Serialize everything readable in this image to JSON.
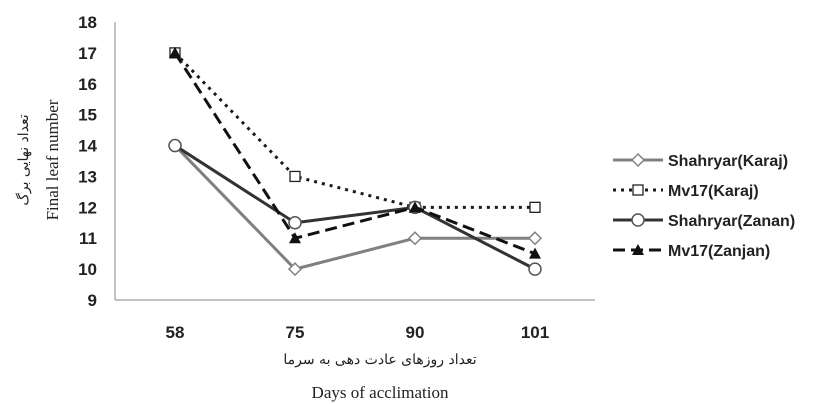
{
  "chart_data": {
    "type": "line",
    "categories": [
      "58",
      "75",
      "90",
      "101"
    ],
    "ylim": [
      9,
      18
    ],
    "yticks": [
      "9",
      "10",
      "11",
      "12",
      "13",
      "14",
      "15",
      "16",
      "17",
      "18"
    ],
    "ylabel_fa": "تعداد نهایی برگ",
    "ylabel_en": "Final leaf number",
    "xlabel_fa": "تعداد روزهای عادت دهی به سرما",
    "xlabel_en": "Days of acclimation",
    "legend_position": "right",
    "grid": false,
    "series": [
      {
        "name": "Shahryar(Karaj)",
        "values": [
          14,
          10,
          11,
          11
        ],
        "color": "#808080",
        "dash": "solid",
        "marker": "diamond-open"
      },
      {
        "name": "Mv17(Karaj)",
        "values": [
          17,
          13,
          12,
          12
        ],
        "color": "#1a1a1a",
        "dash": "dotted",
        "marker": "square-open"
      },
      {
        "name": "Shahryar(Zanan)",
        "values": [
          14,
          11.5,
          12,
          10
        ],
        "color": "#333333",
        "dash": "solid",
        "marker": "circle-open"
      },
      {
        "name": "Mv17(Zanjan)",
        "values": [
          17,
          11,
          12,
          10.5
        ],
        "color": "#111111",
        "dash": "dashed",
        "marker": "triangle-filled"
      }
    ]
  }
}
